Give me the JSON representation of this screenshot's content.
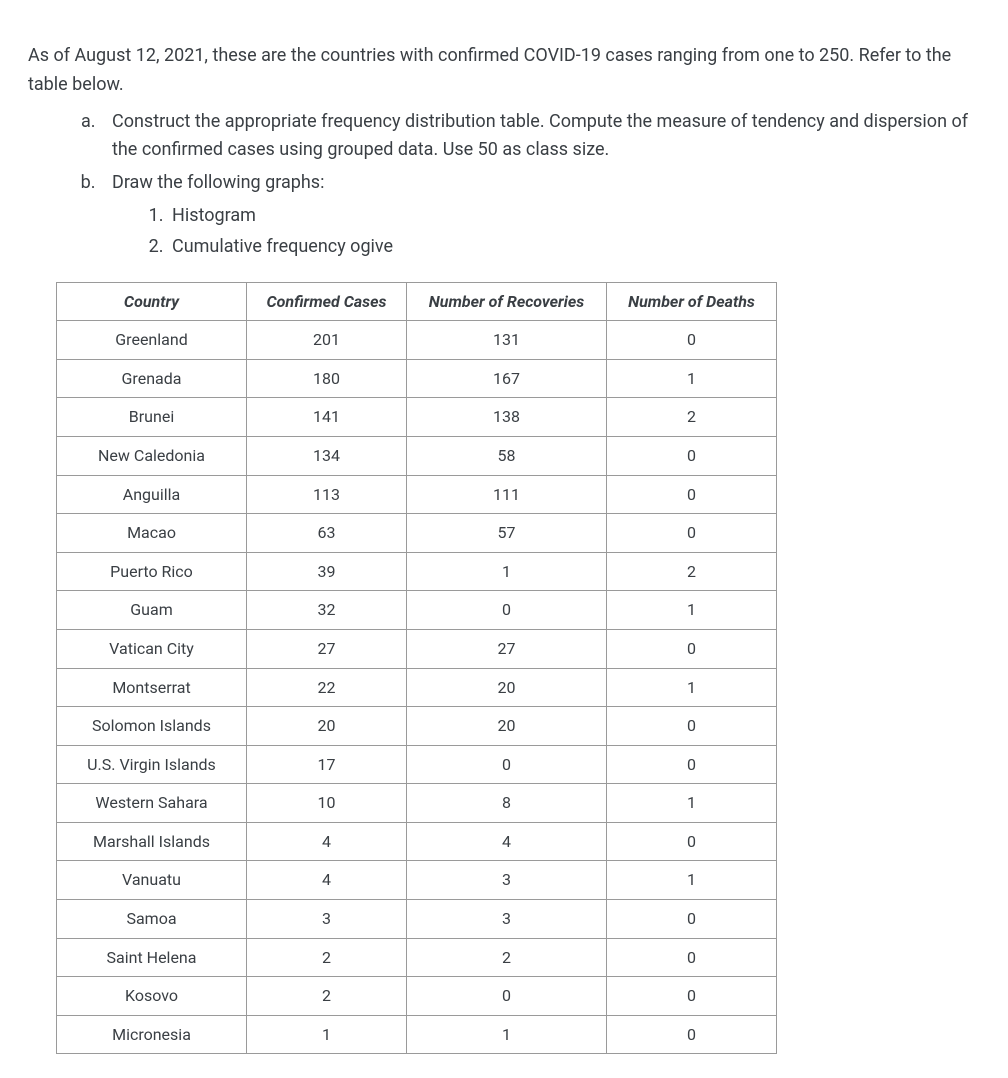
{
  "intro": "As of August 12, 2021, these are the countries with confirmed COVID-19 cases ranging from one to 250. Refer to the table below.",
  "questions": {
    "a": "Construct the appropriate frequency distribution table. Compute the measure of tendency and dispersion of the confirmed cases using grouped data. Use 50 as class size.",
    "b": "Draw the following graphs:",
    "b_sub": {
      "1": "Histogram",
      "2": "Cumulative frequency ogive"
    }
  },
  "table": {
    "columns": [
      "Country",
      "Confirmed Cases",
      "Number of Recoveries",
      "Number of Deaths"
    ],
    "rows": [
      [
        "Greenland",
        "201",
        "131",
        "0"
      ],
      [
        "Grenada",
        "180",
        "167",
        "1"
      ],
      [
        "Brunei",
        "141",
        "138",
        "2"
      ],
      [
        "New Caledonia",
        "134",
        "58",
        "0"
      ],
      [
        "Anguilla",
        "113",
        "111",
        "0"
      ],
      [
        "Macao",
        "63",
        "57",
        "0"
      ],
      [
        "Puerto Rico",
        "39",
        "1",
        "2"
      ],
      [
        "Guam",
        "32",
        "0",
        "1"
      ],
      [
        "Vatican City",
        "27",
        "27",
        "0"
      ],
      [
        "Montserrat",
        "22",
        "20",
        "1"
      ],
      [
        "Solomon Islands",
        "20",
        "20",
        "0"
      ],
      [
        "U.S. Virgin Islands",
        "17",
        "0",
        "0"
      ],
      [
        "Western Sahara",
        "10",
        "8",
        "1"
      ],
      [
        "Marshall Islands",
        "4",
        "4",
        "0"
      ],
      [
        "Vanuatu",
        "4",
        "3",
        "1"
      ],
      [
        "Samoa",
        "3",
        "3",
        "0"
      ],
      [
        "Saint Helena",
        "2",
        "2",
        "0"
      ],
      [
        "Kosovo",
        "2",
        "0",
        "0"
      ],
      [
        "Micronesia",
        "1",
        "1",
        "0"
      ]
    ],
    "border_color": "#9a9a9a",
    "text_color": "#3a3f44",
    "header_font_style": "bold-italic",
    "cell_font_size": 16
  },
  "body_font_size": 18,
  "body_text_color": "#3a3f44",
  "background_color": "#ffffff"
}
